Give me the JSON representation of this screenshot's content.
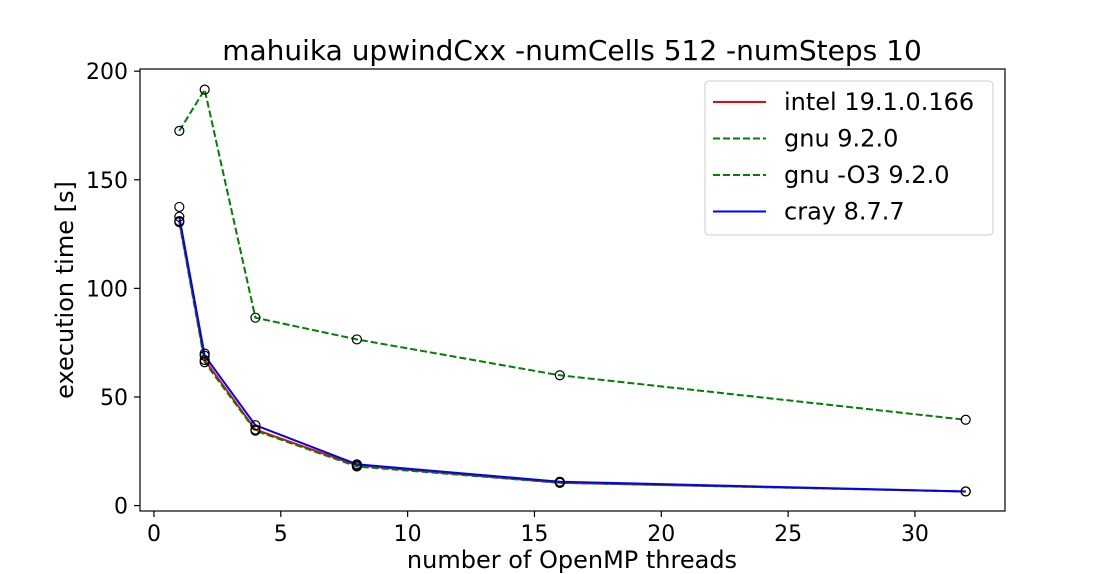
{
  "chart_data": {
    "type": "line",
    "title": "mahuika upwindCxx -numCells 512 -numSteps 10",
    "xlabel": "number of OpenMP threads",
    "ylabel": "execution time [s]",
    "xlim": [
      -0.55,
      33.55
    ],
    "ylim": [
      -2.5,
      201
    ],
    "xticks": [
      0,
      5,
      10,
      15,
      20,
      25,
      30
    ],
    "yticks": [
      0,
      50,
      100,
      150,
      200
    ],
    "grid": false,
    "legend_position": "top-right",
    "x": [
      1,
      2,
      4,
      8,
      16,
      32
    ],
    "series": [
      {
        "name": "intel 19.1.0.166",
        "color": "#ff0000",
        "dash": "solid",
        "values": [
          131,
          67,
          35,
          18.5,
          10.5,
          6.5
        ]
      },
      {
        "name": "gnu 9.2.0",
        "color": "#008000",
        "dash": "dashed",
        "values": [
          172.5,
          191.5,
          86.5,
          76.5,
          60,
          39.5
        ]
      },
      {
        "name": "gnu -O3 9.2.0",
        "color": "#008000",
        "dash": "dashed",
        "values": [
          130.5,
          66,
          34.5,
          18,
          10.5,
          6.5
        ]
      },
      {
        "name": "cray 8.7.7",
        "color": "#0000ff",
        "dash": "solid",
        "values": [
          133,
          69,
          37,
          19,
          11,
          6.5
        ]
      }
    ],
    "extra_markers_y": [
      137.5,
      70
    ]
  }
}
